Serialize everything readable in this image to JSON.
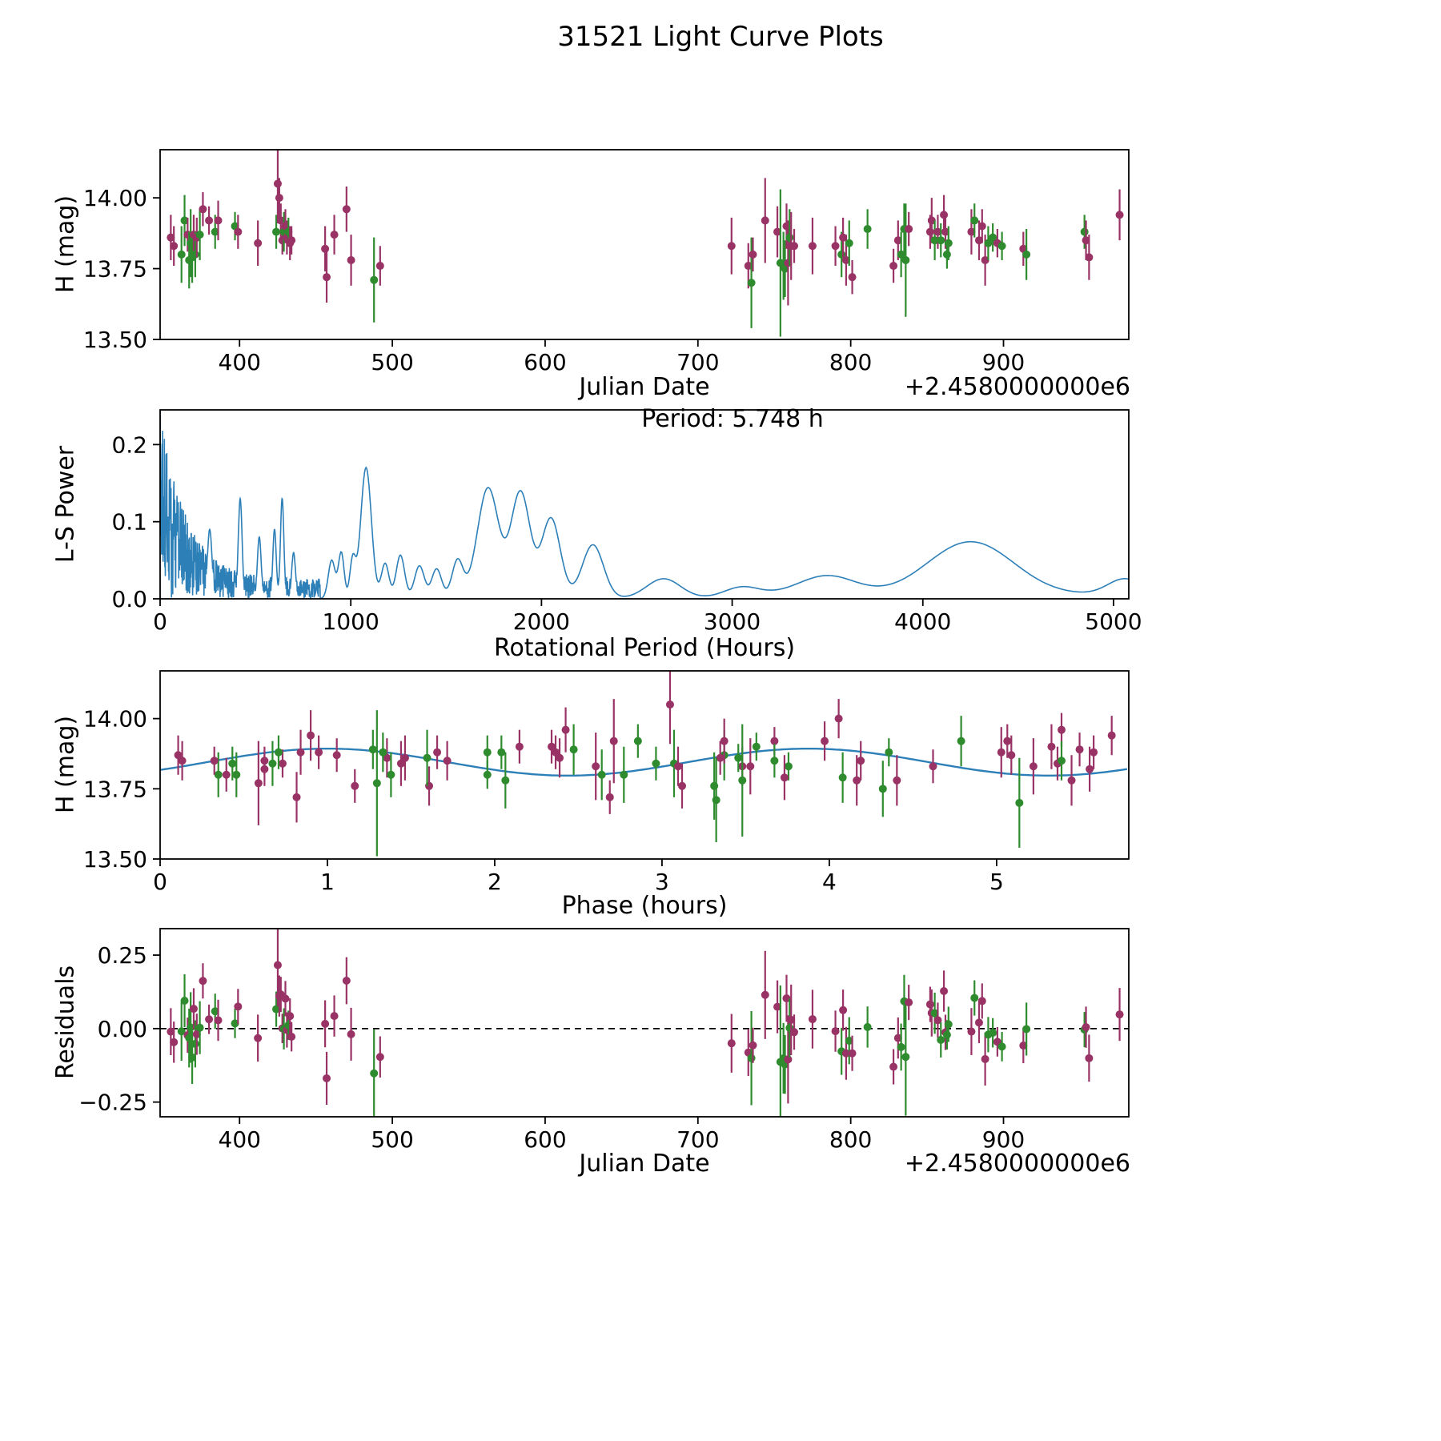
{
  "title": "31521 Light Curve Plots",
  "colors": {
    "purple": "#993366",
    "green": "#2e8b2e",
    "blue": "#2d7fb8",
    "axis": "#000000"
  },
  "panels": {
    "lightcurve": {
      "ylabel": "H (mag)",
      "xlabel": "Julian Date",
      "x_offset_label": "+2.4580000000e6",
      "xlim": [
        348,
        982
      ],
      "ylim": [
        13.5,
        14.17
      ],
      "xtick_vals": [
        400,
        500,
        600,
        700,
        800,
        900
      ],
      "xtick_labels": [
        "400",
        "500",
        "600",
        "700",
        "800",
        "900"
      ],
      "ytick_vals": [
        13.5,
        13.75,
        14.0
      ],
      "ytick_labels": [
        "13.50",
        "13.75",
        "14.00"
      ]
    },
    "periodogram": {
      "ylabel": "L-S Power",
      "xlabel": "Rotational Period (Hours)",
      "annotation": "Period: 5.748 h",
      "xlim": [
        0,
        5080
      ],
      "ylim": [
        0,
        0.245
      ],
      "xtick_vals": [
        0,
        1000,
        2000,
        3000,
        4000,
        5000
      ],
      "xtick_labels": [
        "0",
        "1000",
        "2000",
        "3000",
        "4000",
        "5000"
      ],
      "ytick_vals": [
        0,
        0.1,
        0.2
      ],
      "ytick_labels": [
        "0.0",
        "0.1",
        "0.2"
      ]
    },
    "phase": {
      "ylabel": "H (mag)",
      "xlabel": "Phase (hours)",
      "xlim": [
        0,
        5.79
      ],
      "ylim": [
        13.5,
        14.17
      ],
      "xtick_vals": [
        0,
        1,
        2,
        3,
        4,
        5
      ],
      "xtick_labels": [
        "0",
        "1",
        "2",
        "3",
        "4",
        "5"
      ],
      "ytick_vals": [
        13.5,
        13.75,
        14.0
      ],
      "ytick_labels": [
        "13.50",
        "13.75",
        "14.00"
      ]
    },
    "residuals": {
      "ylabel": "Residuals",
      "xlabel": "Julian Date",
      "x_offset_label": "+2.4580000000e6",
      "xlim": [
        348,
        982
      ],
      "ylim": [
        -0.3,
        0.34
      ],
      "xtick_vals": [
        400,
        500,
        600,
        700,
        800,
        900
      ],
      "xtick_labels": [
        "400",
        "500",
        "600",
        "700",
        "800",
        "900"
      ],
      "ytick_vals": [
        -0.25,
        0,
        0.25
      ],
      "ytick_labels": [
        "−0.25",
        "0.00",
        "0.25"
      ]
    }
  },
  "chart_data": {
    "figure_title": "31521 Light Curve Plots",
    "rotation_period_hours": 5.748,
    "jd_offset_base": "+2.4580000000e6",
    "charts": [
      {
        "id": "lightcurve",
        "type": "scatter",
        "xlabel": "Julian Date",
        "ylabel": "H (mag)",
        "xlim": [
          348,
          982
        ],
        "ylim": [
          13.5,
          14.17
        ],
        "legend": "none",
        "grid": false
      },
      {
        "id": "periodogram",
        "type": "line",
        "xlabel": "Rotational Period (Hours)",
        "ylabel": "L-S Power",
        "xlim": [
          0,
          5080
        ],
        "ylim": [
          0,
          0.245
        ],
        "annotation": "Period: 5.748 h",
        "grid": false
      },
      {
        "id": "phase",
        "type": "scatter",
        "xlabel": "Phase (hours)",
        "ylabel": "H (mag)",
        "xlim": [
          0,
          5.79
        ],
        "ylim": [
          13.5,
          14.17
        ],
        "overlay": "sinusoid-fit",
        "grid": false
      },
      {
        "id": "residuals",
        "type": "scatter",
        "xlabel": "Julian Date",
        "ylabel": "Residuals",
        "xlim": [
          348,
          982
        ],
        "ylim": [
          -0.3,
          0.34
        ],
        "overlay": "zero-dashed-line",
        "grid": false
      }
    ],
    "observations": {
      "columns": [
        "julian_date_minus_2.458e6",
        "H_mag",
        "H_err",
        "series"
      ],
      "series_key": {
        "p": "purple",
        "g": "green"
      },
      "rows": [
        [
          355,
          13.86,
          0.08,
          "p"
        ],
        [
          357,
          13.83,
          0.07,
          "p"
        ],
        [
          362,
          13.8,
          0.1,
          "g"
        ],
        [
          364,
          13.92,
          0.09,
          "g"
        ],
        [
          366,
          13.87,
          0.06,
          "p"
        ],
        [
          367,
          13.78,
          0.1,
          "g"
        ],
        [
          368,
          13.84,
          0.12,
          "g"
        ],
        [
          369,
          13.79,
          0.09,
          "g"
        ],
        [
          370,
          13.87,
          0.07,
          "p"
        ],
        [
          371,
          13.8,
          0.08,
          "g"
        ],
        [
          372,
          13.86,
          0.07,
          "p"
        ],
        [
          374,
          13.87,
          0.09,
          "g"
        ],
        [
          376,
          13.96,
          0.06,
          "p"
        ],
        [
          380,
          13.92,
          0.05,
          "p"
        ],
        [
          384,
          13.88,
          0.06,
          "g"
        ],
        [
          386,
          13.92,
          0.07,
          "p"
        ],
        [
          397,
          13.9,
          0.05,
          "g"
        ],
        [
          399,
          13.88,
          0.06,
          "p"
        ],
        [
          412,
          13.84,
          0.08,
          "p"
        ],
        [
          424,
          13.88,
          0.06,
          "g"
        ],
        [
          425,
          14.05,
          0.14,
          "p"
        ],
        [
          426,
          14.0,
          0.07,
          "p"
        ],
        [
          427,
          13.92,
          0.06,
          "p"
        ],
        [
          428,
          13.85,
          0.05,
          "p"
        ],
        [
          429,
          13.88,
          0.07,
          "g"
        ],
        [
          430,
          13.9,
          0.06,
          "p"
        ],
        [
          431,
          13.86,
          0.06,
          "p"
        ],
        [
          432,
          13.88,
          0.05,
          "g"
        ],
        [
          433,
          13.84,
          0.06,
          "p"
        ],
        [
          434,
          13.85,
          0.05,
          "p"
        ],
        [
          456,
          13.82,
          0.08,
          "p"
        ],
        [
          457,
          13.72,
          0.09,
          "p"
        ],
        [
          462,
          13.87,
          0.07,
          "p"
        ],
        [
          470,
          13.96,
          0.08,
          "p"
        ],
        [
          473,
          13.78,
          0.09,
          "p"
        ],
        [
          488,
          13.71,
          0.15,
          "g"
        ],
        [
          492,
          13.76,
          0.07,
          "p"
        ],
        [
          722,
          13.83,
          0.1,
          "p"
        ],
        [
          733,
          13.76,
          0.08,
          "p"
        ],
        [
          735,
          13.7,
          0.16,
          "g"
        ],
        [
          736,
          13.8,
          0.06,
          "p"
        ],
        [
          744,
          13.92,
          0.15,
          "p"
        ],
        [
          752,
          13.88,
          0.09,
          "p"
        ],
        [
          754,
          13.77,
          0.26,
          "g"
        ],
        [
          756,
          13.76,
          0.12,
          "g"
        ],
        [
          757,
          13.75,
          0.1,
          "g"
        ],
        [
          758,
          13.9,
          0.08,
          "p"
        ],
        [
          759,
          13.77,
          0.15,
          "p"
        ],
        [
          760,
          13.86,
          0.1,
          "g"
        ],
        [
          761,
          13.83,
          0.12,
          "p"
        ],
        [
          763,
          13.83,
          0.06,
          "p"
        ],
        [
          775,
          13.83,
          0.1,
          "p"
        ],
        [
          790,
          13.83,
          0.07,
          "p"
        ],
        [
          794,
          13.8,
          0.08,
          "g"
        ],
        [
          795,
          13.86,
          0.07,
          "p"
        ],
        [
          797,
          13.78,
          0.09,
          "p"
        ],
        [
          799,
          13.84,
          0.08,
          "g"
        ],
        [
          801,
          13.72,
          0.06,
          "p"
        ],
        [
          811,
          13.89,
          0.07,
          "g"
        ],
        [
          828,
          13.76,
          0.06,
          "p"
        ],
        [
          831,
          13.85,
          0.07,
          "p"
        ],
        [
          833,
          13.8,
          0.08,
          "g"
        ],
        [
          835,
          13.89,
          0.09,
          "g"
        ],
        [
          836,
          13.78,
          0.2,
          "g"
        ],
        [
          838,
          13.89,
          0.06,
          "p"
        ],
        [
          852,
          13.88,
          0.06,
          "p"
        ],
        [
          853,
          13.92,
          0.08,
          "p"
        ],
        [
          855,
          13.85,
          0.07,
          "g"
        ],
        [
          857,
          13.88,
          0.06,
          "p"
        ],
        [
          859,
          13.85,
          0.06,
          "g"
        ],
        [
          861,
          13.94,
          0.07,
          "p"
        ],
        [
          862,
          13.88,
          0.06,
          "p"
        ],
        [
          863,
          13.8,
          0.05,
          "g"
        ],
        [
          864,
          13.84,
          0.06,
          "g"
        ],
        [
          879,
          13.88,
          0.08,
          "p"
        ],
        [
          881,
          13.92,
          0.06,
          "g"
        ],
        [
          884,
          13.85,
          0.07,
          "p"
        ],
        [
          886,
          13.9,
          0.06,
          "p"
        ],
        [
          888,
          13.78,
          0.09,
          "p"
        ],
        [
          890,
          13.84,
          0.06,
          "g"
        ],
        [
          893,
          13.86,
          0.05,
          "g"
        ],
        [
          896,
          13.84,
          0.05,
          "p"
        ],
        [
          899,
          13.83,
          0.05,
          "g"
        ],
        [
          913,
          13.82,
          0.06,
          "p"
        ],
        [
          915,
          13.8,
          0.09,
          "g"
        ],
        [
          953,
          13.88,
          0.06,
          "g"
        ],
        [
          954,
          13.85,
          0.07,
          "p"
        ],
        [
          956,
          13.79,
          0.08,
          "p"
        ],
        [
          976,
          13.94,
          0.09,
          "p"
        ]
      ]
    },
    "fit": {
      "type": "sinusoid",
      "mean": 13.845,
      "amplitude": 0.048,
      "cycles": 2,
      "period_hours": 5.748,
      "phase_shift_rad": -0.615
    },
    "periodogram": {
      "type": "line",
      "peak_period_hours": 5.748,
      "noise": {
        "seed": 20,
        "x_end": 840,
        "step": 1.3,
        "peak": 0.22,
        "decay": 140,
        "floor": 0.025
      },
      "peaks": [
        [
          260,
          0.09,
          12
        ],
        [
          420,
          0.13,
          10
        ],
        [
          520,
          0.08,
          10
        ],
        [
          600,
          0.09,
          9
        ],
        [
          640,
          0.13,
          9
        ],
        [
          700,
          0.06,
          10
        ],
        [
          900,
          0.05,
          18
        ],
        [
          950,
          0.06,
          15
        ],
        [
          1010,
          0.05,
          15
        ],
        [
          1080,
          0.17,
          28
        ],
        [
          1180,
          0.045,
          20
        ],
        [
          1260,
          0.055,
          22
        ],
        [
          1360,
          0.04,
          25
        ],
        [
          1450,
          0.035,
          25
        ],
        [
          1560,
          0.045,
          28
        ],
        [
          1720,
          0.138,
          55
        ],
        [
          1890,
          0.133,
          50
        ],
        [
          2050,
          0.1,
          48
        ],
        [
          2270,
          0.068,
          55
        ],
        [
          2640,
          0.026,
          90
        ],
        [
          3050,
          0.012,
          90
        ],
        [
          3500,
          0.024,
          150
        ],
        [
          4250,
          0.074,
          230
        ],
        [
          5060,
          0.02,
          90
        ]
      ]
    }
  }
}
